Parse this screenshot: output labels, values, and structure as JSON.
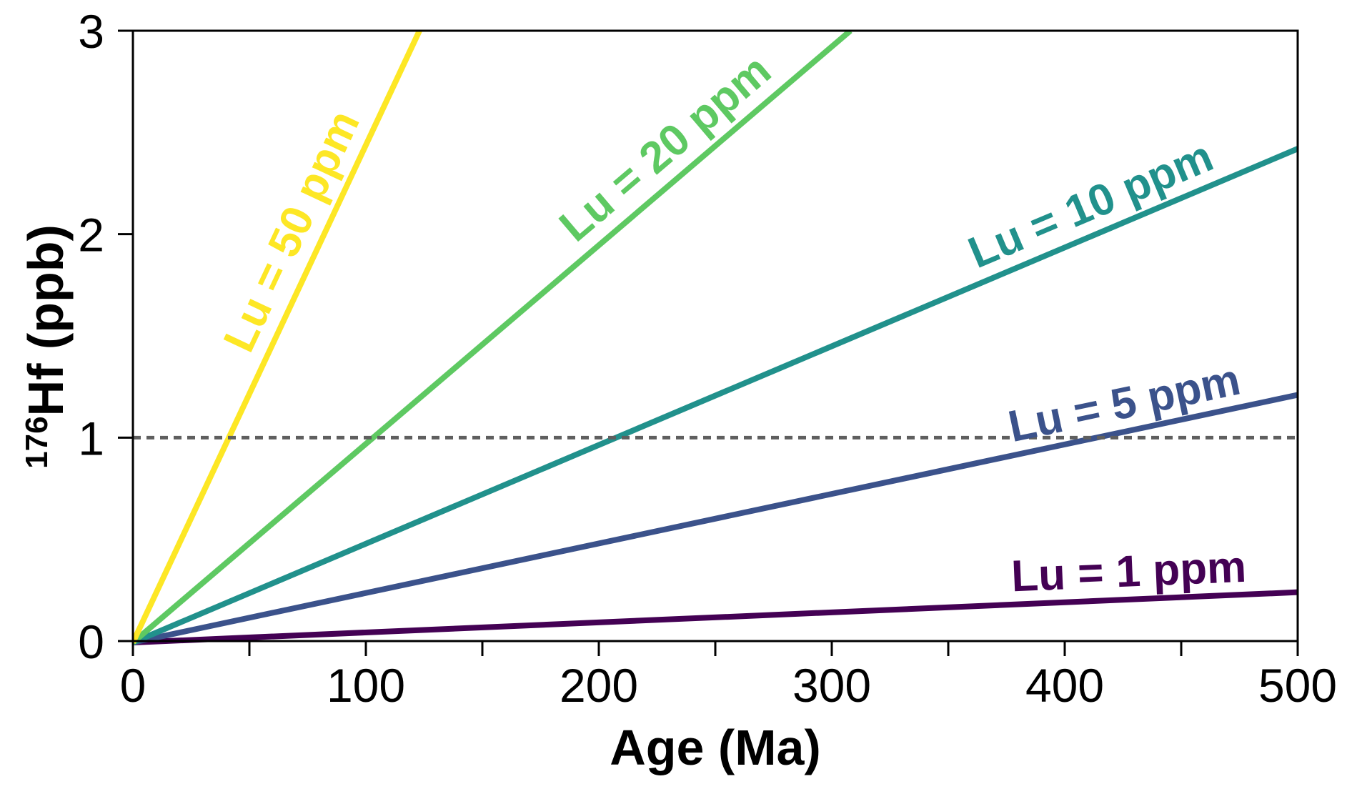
{
  "chart_data": {
    "type": "line",
    "title": "",
    "xlabel": "Age (Ma)",
    "ylabel": {
      "superscript": "176",
      "main": "Hf (ppb)"
    },
    "xlim": [
      0,
      500
    ],
    "ylim": [
      0,
      3
    ],
    "x_ticks": [
      0,
      100,
      200,
      300,
      400,
      500
    ],
    "x_minor_ticks": [
      50,
      150,
      250,
      350,
      450
    ],
    "x_tick_labels": [
      "0",
      "100",
      "200",
      "300",
      "400",
      "500"
    ],
    "y_ticks": [
      0,
      1,
      2,
      3
    ],
    "y_tick_labels": [
      "0",
      "1",
      "2",
      "3"
    ],
    "grid": false,
    "legend": "inline labels along lines",
    "reference_line": {
      "y": 1,
      "style": "dashed",
      "color": "#5f5f5f"
    },
    "series": [
      {
        "name": "Lu = 1 ppm",
        "lu_ppm": 1,
        "color": "#440154",
        "x": [
          0,
          500
        ],
        "y": [
          0,
          0.24
        ]
      },
      {
        "name": "Lu = 5 ppm",
        "lu_ppm": 5,
        "color": "#3b528b",
        "x": [
          0,
          500
        ],
        "y": [
          0,
          1.21
        ]
      },
      {
        "name": "Lu = 10 ppm",
        "lu_ppm": 10,
        "color": "#21918c",
        "x": [
          0,
          500
        ],
        "y": [
          0,
          2.42
        ]
      },
      {
        "name": "Lu = 20 ppm",
        "lu_ppm": 20,
        "color": "#5ec962",
        "x": [
          0,
          308
        ],
        "y": [
          0,
          3.0
        ]
      },
      {
        "name": "Lu = 50 ppm",
        "lu_ppm": 50,
        "color": "#fde725",
        "x": [
          0,
          123
        ],
        "y": [
          0,
          3.0
        ]
      }
    ]
  }
}
